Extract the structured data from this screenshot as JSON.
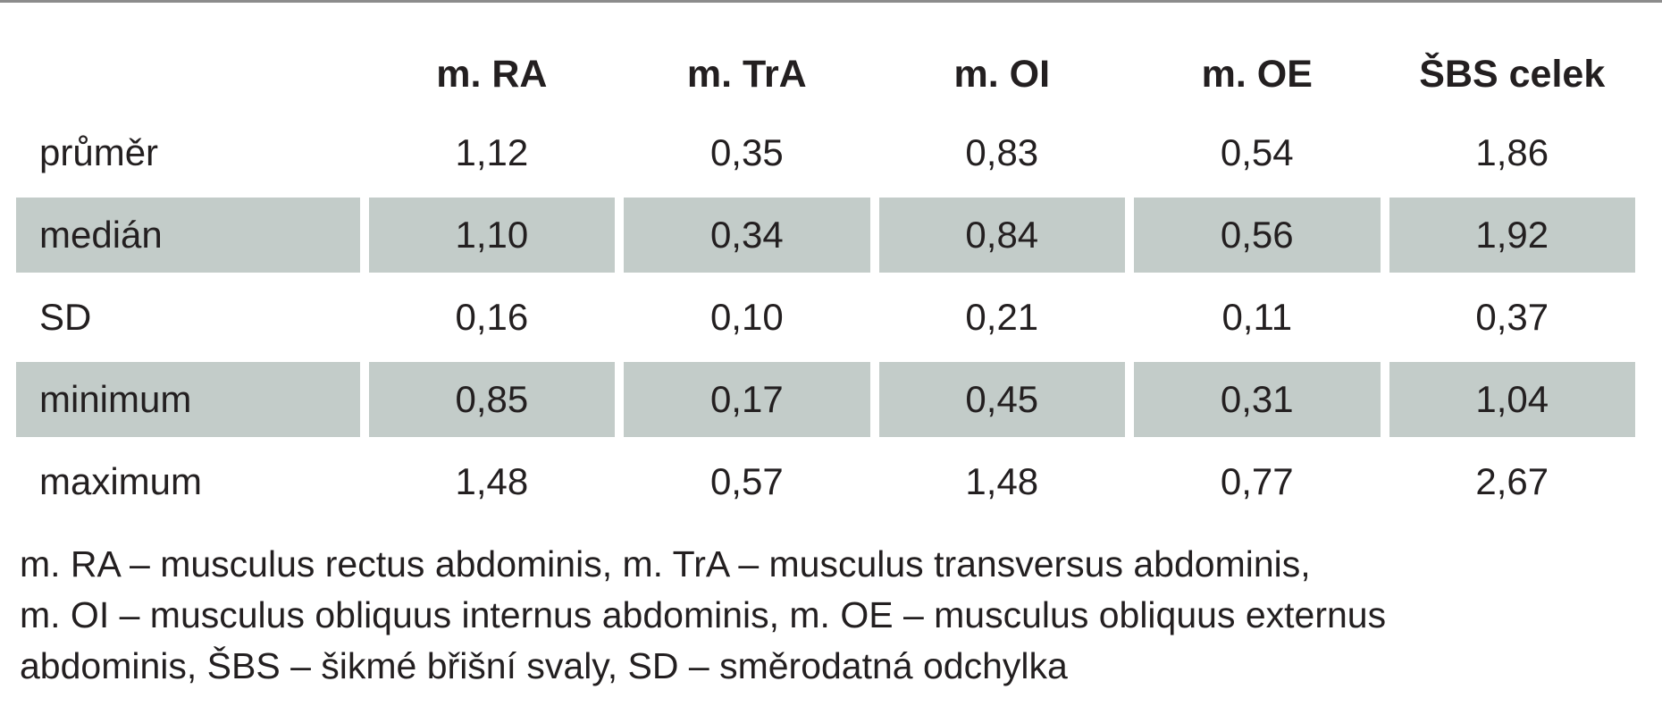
{
  "table": {
    "columns": [
      "",
      "m. RA",
      "m. TrA",
      "m. OI",
      "m. OE",
      "ŠBS celek"
    ],
    "rows": [
      {
        "label": "průměr",
        "values": [
          "1,12",
          "0,35",
          "0,83",
          "0,54",
          "1,86"
        ],
        "shaded": false
      },
      {
        "label": "medián",
        "values": [
          "1,10",
          "0,34",
          "0,84",
          "0,56",
          "1,92"
        ],
        "shaded": true
      },
      {
        "label": "SD",
        "values": [
          "0,16",
          "0,10",
          "0,21",
          "0,11",
          "0,37"
        ],
        "shaded": false
      },
      {
        "label": "minimum",
        "values": [
          "0,85",
          "0,17",
          "0,45",
          "0,31",
          "1,04"
        ],
        "shaded": true
      },
      {
        "label": "maximum",
        "values": [
          "1,48",
          "0,57",
          "1,48",
          "0,77",
          "2,67"
        ],
        "shaded": false
      }
    ]
  },
  "footnote": {
    "lines": [
      "m. RA – musculus rectus abdominis, m. TrA – musculus transversus abdominis,",
      "m. OI – musculus obliquus internus abdominis, m. OE – musculus obliquus externus",
      "abdominis, ŠBS – šikmé břišní svaly, SD – směrodatná odchylka"
    ]
  },
  "colors": {
    "shaded_row": "#c3ccc9",
    "top_rule": "#8c8c8c",
    "text": "#231f20"
  }
}
